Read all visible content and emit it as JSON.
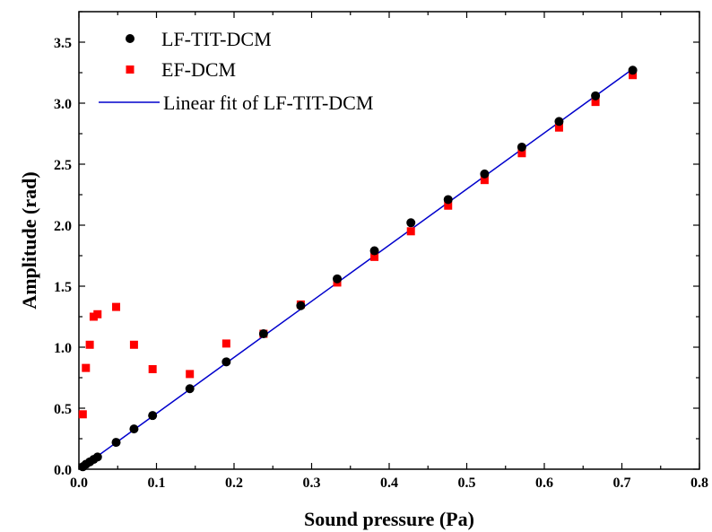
{
  "chart_data": {
    "type": "scatter",
    "title": "",
    "xlabel": "Sound pressure (Pa)",
    "ylabel": "Amplitude (rad)",
    "xlim": [
      0.0,
      0.8
    ],
    "ylim": [
      0.0,
      3.75
    ],
    "x_ticks": [
      "0.0",
      "0.1",
      "0.2",
      "0.3",
      "0.4",
      "0.5",
      "0.6",
      "0.7",
      "0.8"
    ],
    "y_ticks": [
      "0.0",
      "0.5",
      "1.0",
      "1.5",
      "2.0",
      "2.5",
      "3.0",
      "3.5"
    ],
    "grid": false,
    "legend_position": "top-left",
    "series": [
      {
        "name": "LF-TIT-DCM",
        "marker": "circle",
        "color": "#000000",
        "x": [
          0.005,
          0.009,
          0.014,
          0.019,
          0.024,
          0.048,
          0.071,
          0.095,
          0.143,
          0.19,
          0.238,
          0.286,
          0.333,
          0.381,
          0.428,
          0.476,
          0.523,
          0.571,
          0.619,
          0.666,
          0.714
        ],
        "y": [
          0.02,
          0.04,
          0.06,
          0.08,
          0.1,
          0.22,
          0.33,
          0.44,
          0.66,
          0.88,
          1.11,
          1.34,
          1.56,
          1.79,
          2.02,
          2.21,
          2.42,
          2.64,
          2.85,
          3.06,
          3.27
        ]
      },
      {
        "name": "EF-DCM",
        "marker": "square",
        "color": "#ff0000",
        "x": [
          0.005,
          0.009,
          0.014,
          0.019,
          0.024,
          0.048,
          0.071,
          0.095,
          0.143,
          0.19,
          0.238,
          0.286,
          0.333,
          0.381,
          0.428,
          0.476,
          0.523,
          0.571,
          0.619,
          0.666,
          0.714
        ],
        "y": [
          0.45,
          0.83,
          1.02,
          1.25,
          1.27,
          1.33,
          1.02,
          0.82,
          0.78,
          1.03,
          1.11,
          1.35,
          1.53,
          1.74,
          1.95,
          2.16,
          2.37,
          2.59,
          2.8,
          3.01,
          3.23
        ]
      }
    ],
    "fit": {
      "name": "Linear fit of LF-TIT-DCM",
      "color": "#0000cc",
      "x": [
        0.005,
        0.714
      ],
      "y": [
        0.02,
        3.28
      ]
    }
  }
}
